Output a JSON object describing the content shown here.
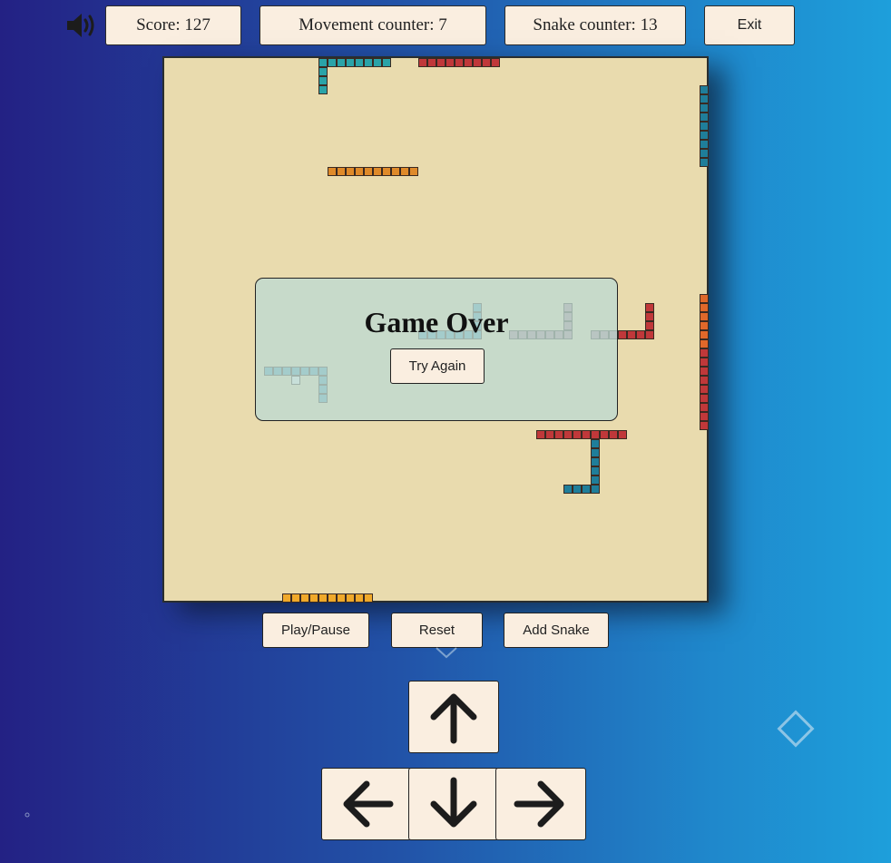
{
  "header": {
    "score": "Score: 127",
    "movement_counter": "Movement counter: 7",
    "snake_counter": "Snake counter: 13",
    "exit_label": "Exit",
    "sound_icon": "speaker-volume-icon"
  },
  "overlay": {
    "title": "Game Over",
    "try_again_label": "Try Again"
  },
  "controls": {
    "play_pause_label": "Play/Pause",
    "reset_label": "Reset",
    "add_snake_label": "Add Snake"
  },
  "arrows": {
    "up_icon": "arrow-up-icon",
    "left_icon": "arrow-left-icon",
    "down_icon": "arrow-down-icon",
    "right_icon": "arrow-right-icon"
  },
  "board": {
    "grid_cells": 60,
    "snakes": [
      {
        "color": "#2aa3a8",
        "cells": [
          [
            24,
            0
          ],
          [
            23,
            0
          ],
          [
            22,
            0
          ],
          [
            21,
            0
          ],
          [
            20,
            0
          ],
          [
            19,
            0
          ],
          [
            18,
            0
          ],
          [
            17,
            0
          ],
          [
            17,
            1
          ],
          [
            17,
            2
          ],
          [
            17,
            3
          ]
        ]
      },
      {
        "color": "#c0383a",
        "cells": [
          [
            28,
            0
          ],
          [
            29,
            0
          ],
          [
            30,
            0
          ],
          [
            31,
            0
          ],
          [
            32,
            0
          ],
          [
            33,
            0
          ],
          [
            34,
            0
          ],
          [
            35,
            0
          ],
          [
            36,
            0
          ]
        ]
      },
      {
        "color": "#1f7e9a",
        "cells": [
          [
            59,
            3
          ],
          [
            59,
            4
          ],
          [
            59,
            5
          ],
          [
            59,
            6
          ],
          [
            59,
            7
          ],
          [
            59,
            8
          ],
          [
            59,
            9
          ],
          [
            59,
            10
          ],
          [
            59,
            11
          ]
        ]
      },
      {
        "color": "#df8a2a",
        "cells": [
          [
            18,
            12
          ],
          [
            19,
            12
          ],
          [
            20,
            12
          ],
          [
            21,
            12
          ],
          [
            22,
            12
          ],
          [
            23,
            12
          ],
          [
            24,
            12
          ],
          [
            25,
            12
          ],
          [
            26,
            12
          ],
          [
            27,
            12
          ]
        ]
      },
      {
        "color": "#4b9db0",
        "cells": [
          [
            34,
            27
          ],
          [
            34,
            28
          ],
          [
            34,
            29
          ],
          [
            34,
            30
          ],
          [
            33,
            30
          ],
          [
            32,
            30
          ],
          [
            31,
            30
          ],
          [
            30,
            30
          ],
          [
            29,
            30
          ],
          [
            28,
            30
          ]
        ]
      },
      {
        "color": "#a87a8a",
        "cells": [
          [
            44,
            27
          ],
          [
            44,
            28
          ],
          [
            44,
            29
          ],
          [
            44,
            30
          ],
          [
            43,
            30
          ],
          [
            42,
            30
          ],
          [
            41,
            30
          ],
          [
            40,
            30
          ],
          [
            39,
            30
          ],
          [
            38,
            30
          ]
        ]
      },
      {
        "color": "#c0383a",
        "cells": [
          [
            53,
            27
          ],
          [
            53,
            28
          ],
          [
            53,
            29
          ],
          [
            53,
            30
          ],
          [
            52,
            30
          ],
          [
            51,
            30
          ],
          [
            50,
            30
          ]
        ]
      },
      {
        "color": "#a87a8a",
        "cells": [
          [
            49,
            30
          ],
          [
            48,
            30
          ],
          [
            47,
            30
          ]
        ]
      },
      {
        "color": "#e0682a",
        "cells": [
          [
            59,
            26
          ],
          [
            59,
            27
          ],
          [
            59,
            28
          ],
          [
            59,
            29
          ],
          [
            59,
            30
          ],
          [
            59,
            31
          ]
        ]
      },
      {
        "color": "#c0383a",
        "cells": [
          [
            59,
            32
          ],
          [
            59,
            33
          ],
          [
            59,
            34
          ],
          [
            59,
            35
          ],
          [
            59,
            36
          ],
          [
            59,
            37
          ],
          [
            59,
            38
          ],
          [
            59,
            39
          ],
          [
            59,
            40
          ]
        ]
      },
      {
        "color": "#4b9db0",
        "cells": [
          [
            11,
            34
          ],
          [
            12,
            34
          ],
          [
            13,
            34
          ],
          [
            14,
            34
          ],
          [
            15,
            34
          ],
          [
            16,
            34
          ],
          [
            17,
            34
          ],
          [
            17,
            35
          ],
          [
            17,
            36
          ],
          [
            17,
            37
          ]
        ]
      },
      {
        "color": "#e6f0f0",
        "cells": [
          [
            14,
            35
          ]
        ]
      },
      {
        "color": "#c0383a",
        "cells": [
          [
            41,
            41
          ],
          [
            42,
            41
          ],
          [
            43,
            41
          ],
          [
            44,
            41
          ],
          [
            45,
            41
          ],
          [
            46,
            41
          ],
          [
            47,
            41
          ],
          [
            48,
            41
          ],
          [
            49,
            41
          ],
          [
            50,
            41
          ]
        ]
      },
      {
        "color": "#1f7e9a",
        "cells": [
          [
            47,
            42
          ],
          [
            47,
            43
          ],
          [
            47,
            44
          ],
          [
            47,
            45
          ],
          [
            47,
            46
          ],
          [
            47,
            47
          ],
          [
            46,
            47
          ],
          [
            45,
            47
          ],
          [
            44,
            47
          ]
        ]
      },
      {
        "color": "#f0a92a",
        "cells": [
          [
            13,
            59
          ],
          [
            14,
            59
          ],
          [
            15,
            59
          ],
          [
            16,
            59
          ],
          [
            17,
            59
          ],
          [
            18,
            59
          ],
          [
            19,
            59
          ],
          [
            20,
            59
          ],
          [
            21,
            59
          ],
          [
            22,
            59
          ]
        ]
      }
    ]
  }
}
